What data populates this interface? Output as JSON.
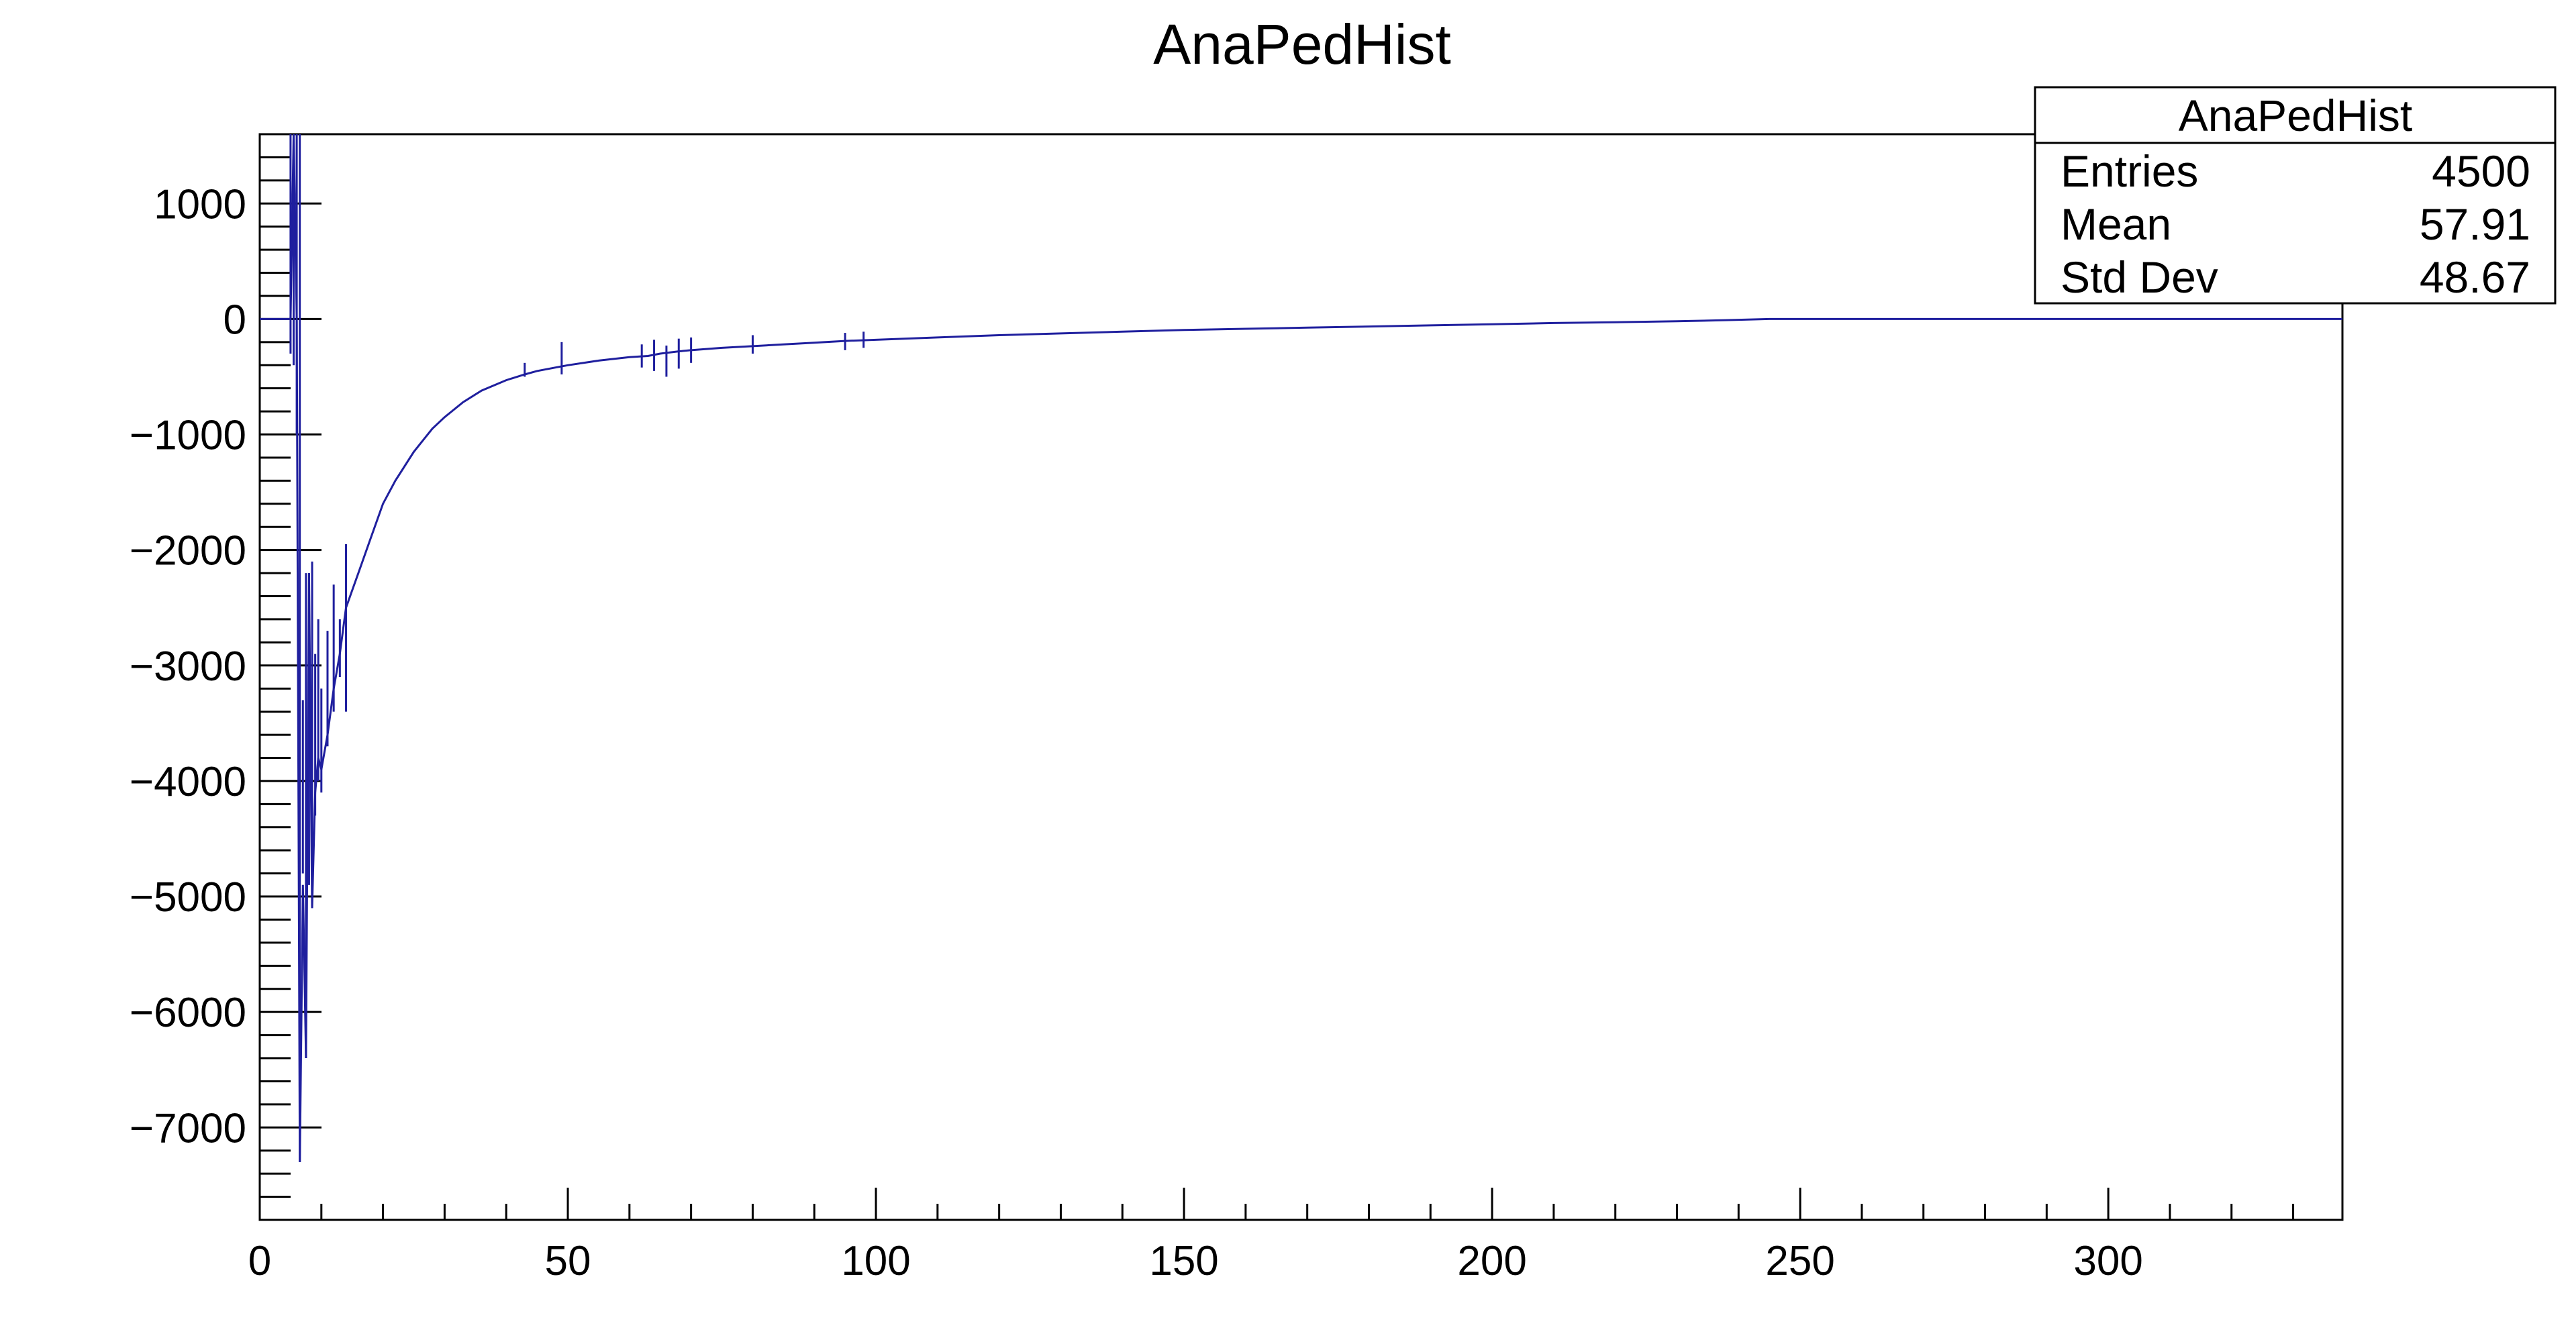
{
  "chart_data": {
    "type": "line",
    "title": "AnaPedHist",
    "xlabel": "",
    "ylabel": "",
    "xlim": [
      0,
      338
    ],
    "ylim": [
      -7800,
      1600
    ],
    "x_major_ticks": [
      0,
      50,
      100,
      150,
      200,
      250,
      300
    ],
    "y_major_ticks": [
      -7000,
      -6000,
      -5000,
      -4000,
      -3000,
      -2000,
      -1000,
      0,
      1000
    ],
    "x_tick_labels": [
      "0",
      "50",
      "100",
      "150",
      "200",
      "250",
      "300"
    ],
    "y_tick_labels": [
      "−7000",
      "−6000",
      "−5000",
      "−4000",
      "−3000",
      "−2000",
      "−1000",
      "0",
      "1000"
    ],
    "color": "#1f1f9e",
    "series": [
      {
        "x": [
          0,
          5,
          5.5,
          6,
          6.5,
          7,
          7.5,
          8,
          8.5,
          9,
          9.5,
          10,
          11,
          12,
          13,
          14,
          15,
          16,
          18,
          20,
          22,
          25,
          28,
          30,
          33,
          36,
          40,
          43,
          45,
          48,
          50,
          55,
          60,
          63,
          65,
          68,
          70,
          75,
          80,
          85,
          90,
          95,
          100,
          110,
          120,
          130,
          140,
          150,
          160,
          170,
          180,
          190,
          200,
          210,
          220,
          230,
          238,
          245,
          260,
          280,
          300,
          320,
          338
        ],
        "y": [
          0,
          0,
          1600,
          0,
          -7300,
          -4900,
          -6400,
          -2200,
          -5100,
          -4100,
          -3800,
          -3900,
          -3600,
          -3200,
          -2900,
          -2500,
          -2350,
          -2200,
          -1900,
          -1600,
          -1400,
          -1150,
          -950,
          -850,
          -720,
          -620,
          -530,
          -480,
          -450,
          -420,
          -400,
          -360,
          -330,
          -320,
          -300,
          -280,
          -270,
          -250,
          -235,
          -220,
          -205,
          -190,
          -180,
          -160,
          -140,
          -125,
          -110,
          -95,
          -85,
          -75,
          -65,
          -55,
          -45,
          -35,
          -28,
          -20,
          -10,
          0,
          0,
          0,
          0,
          0,
          0
        ]
      },
      {
        "x": [
          5,
          5.5,
          6,
          6.5,
          7,
          7.5,
          8,
          8.5,
          9,
          9.5,
          10,
          11,
          12,
          13,
          14,
          43,
          49,
          62,
          64,
          66,
          68,
          70,
          80,
          95,
          98
        ],
        "y_low": [
          -300,
          -400,
          -1000,
          -7300,
          -4800,
          -6400,
          -4900,
          -5100,
          -4300,
          -4000,
          -4100,
          -3700,
          -3400,
          -3100,
          -3400,
          -500,
          -480,
          -420,
          -450,
          -500,
          -430,
          -380,
          -300,
          -270,
          -250
        ],
        "y_high": [
          1600,
          1600,
          1600,
          1600,
          -3300,
          -2200,
          -2200,
          -2100,
          -2900,
          -2600,
          -3200,
          -2700,
          -2300,
          -2600,
          -1950,
          -380,
          -200,
          -220,
          -180,
          -230,
          -170,
          -160,
          -140,
          -120,
          -110
        ]
      }
    ],
    "stats": {
      "title": "AnaPedHist",
      "rows": [
        {
          "label": "Entries",
          "value": "4500"
        },
        {
          "label": "Mean",
          "value": "57.91"
        },
        {
          "label": "Std Dev",
          "value": "48.67"
        }
      ]
    }
  }
}
